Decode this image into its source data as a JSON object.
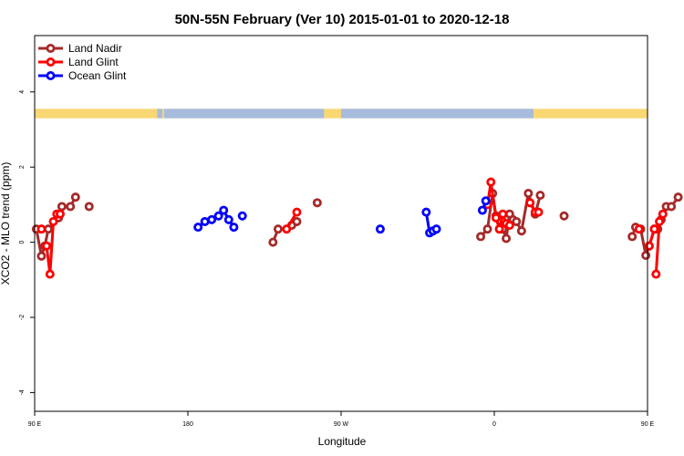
{
  "chart_data": {
    "type": "line",
    "title": "50N-55N February (Ver 10)   2015-01-01 to 2020-12-18",
    "xlabel": "Longitude",
    "ylabel": "XCO2 - MLO trend (ppm)",
    "xlim": [
      90,
      450
    ],
    "ylim": [
      -4.5,
      5.5
    ],
    "x_ticks": [
      {
        "value": 90,
        "label": "90 E"
      },
      {
        "value": 180,
        "label": "180"
      },
      {
        "value": 270,
        "label": "90 W"
      },
      {
        "value": 360,
        "label": "0"
      },
      {
        "value": 450,
        "label": "90 E"
      },
      {
        "value": 540,
        "label": "180"
      }
    ],
    "y_ticks": [
      {
        "value": -4,
        "label": "-4"
      },
      {
        "value": -2,
        "label": "-2"
      },
      {
        "value": 0,
        "label": "0"
      },
      {
        "value": 2,
        "label": "2"
      },
      {
        "value": 4,
        "label": "4"
      }
    ],
    "legend_position": "top-left",
    "land_sea_band": {
      "y_range": [
        3.3,
        3.55
      ],
      "land_color": "#f9d773",
      "ocean_color": "#a7bbdc",
      "ocean_lon": [
        [
          162,
          165
        ],
        [
          166,
          260
        ],
        [
          270,
          383
        ],
        [
          451,
          479
        ],
        [
          486,
          540
        ]
      ]
    },
    "series": [
      {
        "name": "Land Nadir",
        "color": "#a52a2a",
        "segments": [
          [
            [
              91,
              0.35
            ],
            [
              94,
              -0.37
            ],
            [
              96,
              -0.1
            ],
            [
              98,
              0.35
            ],
            [
              104,
              0.65
            ],
            [
              106,
              0.95
            ],
            [
              111,
              0.95
            ],
            [
              114,
              1.2
            ]
          ],
          [
            [
              122,
              0.95
            ]
          ],
          [
            [
              230,
              0.0
            ],
            [
              233,
              0.35
            ]
          ],
          [
            [
              241,
              0.45
            ],
            [
              244,
              0.55
            ]
          ],
          [
            [
              256,
              1.05
            ]
          ],
          [
            [
              352,
              0.15
            ],
            [
              356,
              0.35
            ],
            [
              359,
              1.3
            ],
            [
              361,
              0.7
            ],
            [
              363,
              0.35
            ],
            [
              365,
              0.35
            ],
            [
              367,
              0.1
            ],
            [
              369,
              0.75
            ],
            [
              371,
              0.6
            ],
            [
              373,
              0.55
            ],
            [
              376,
              0.3
            ],
            [
              380,
              1.3
            ],
            [
              384,
              0.75
            ],
            [
              387,
              1.25
            ]
          ],
          [
            [
              401,
              0.7
            ]
          ],
          [
            [
              441,
              0.15
            ],
            [
              443,
              0.4
            ],
            [
              446,
              0.35
            ],
            [
              449,
              -0.35
            ],
            [
              451,
              -0.1
            ],
            [
              454,
              0.35
            ],
            [
              456,
              0.35
            ],
            [
              458,
              0.6
            ],
            [
              461,
              0.95
            ],
            [
              464,
              0.95
            ],
            [
              468,
              1.2
            ]
          ],
          [
            [
              476,
              0.95
            ]
          ]
        ]
      },
      {
        "name": "Land Glint",
        "color": "#ff0000",
        "segments": [
          [
            [
              94,
              0.35
            ]
          ],
          [
            [
              97,
              -0.1
            ],
            [
              99,
              -0.85
            ],
            [
              101,
              0.55
            ],
            [
              103,
              0.75
            ]
          ],
          [
            [
              105,
              0.75
            ]
          ],
          [
            [
              238,
              0.35
            ],
            [
              244,
              0.8
            ]
          ],
          [
            [
              356,
              1.0
            ],
            [
              358,
              1.6
            ],
            [
              361,
              0.65
            ],
            [
              363,
              0.35
            ],
            [
              365,
              0.75
            ],
            [
              367,
              0.5
            ],
            [
              369,
              0.45
            ]
          ],
          [
            [
              381,
              1.05
            ],
            [
              384,
              0.8
            ],
            [
              386,
              0.8
            ]
          ],
          [
            [
              445,
              0.35
            ]
          ],
          [
            [
              451,
              -0.1
            ],
            [
              454,
              0.35
            ]
          ],
          [
            [
              455,
              -0.85
            ],
            [
              457,
              0.55
            ],
            [
              459,
              0.75
            ]
          ]
        ]
      },
      {
        "name": "Ocean Glint",
        "color": "#0000ff",
        "segments": [
          [
            [
              186,
              0.4
            ],
            [
              190,
              0.55
            ],
            [
              194,
              0.6
            ],
            [
              198,
              0.7
            ],
            [
              201,
              0.85
            ],
            [
              204,
              0.6
            ],
            [
              207,
              0.4
            ]
          ],
          [
            [
              212,
              0.7
            ]
          ],
          [
            [
              293,
              0.35
            ]
          ],
          [
            [
              320,
              0.8
            ],
            [
              322,
              0.25
            ],
            [
              324,
              0.3
            ],
            [
              326,
              0.35
            ]
          ],
          [
            [
              353,
              0.85
            ],
            [
              355,
              1.1
            ]
          ]
        ]
      }
    ]
  }
}
